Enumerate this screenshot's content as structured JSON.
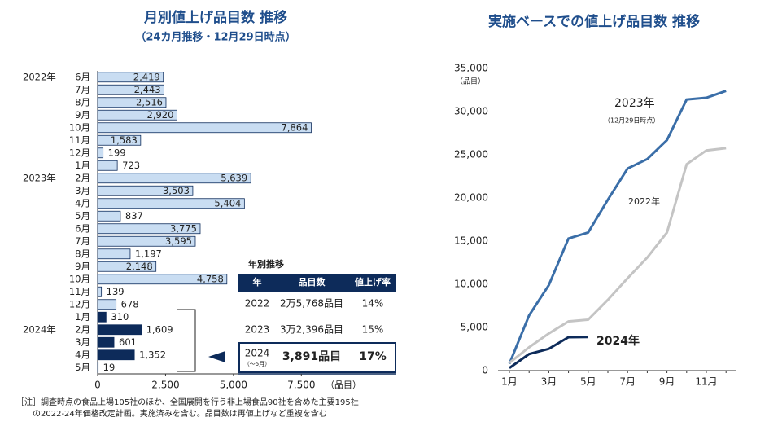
{
  "chart_data": [
    {
      "type": "hbar",
      "title": "月別値上げ品目数 推移",
      "subtitle": "（24カ月推移・12月29日時点）",
      "row_labels": [
        "2022年",
        null,
        null,
        null,
        null,
        null,
        null,
        null,
        "2023年",
        null,
        null,
        null,
        null,
        null,
        null,
        null,
        null,
        null,
        null,
        null,
        "2024年",
        null,
        null,
        null
      ],
      "categories": [
        "6月",
        "7月",
        "8月",
        "9月",
        "10月",
        "11月",
        "12月",
        "1月",
        "2月",
        "3月",
        "4月",
        "5月",
        "6月",
        "7月",
        "8月",
        "9月",
        "10月",
        "11月",
        "12月",
        "1月",
        "2月",
        "3月",
        "4月",
        "5月"
      ],
      "values": [
        2419,
        2443,
        2516,
        2920,
        7864,
        1583,
        199,
        723,
        5639,
        3503,
        5404,
        837,
        3775,
        3595,
        1197,
        2148,
        4758,
        139,
        678,
        310,
        1609,
        601,
        1352,
        19
      ],
      "value_labels": [
        "2,419",
        "2,443",
        "2,516",
        "2,920",
        "7,864",
        "1,583",
        "199",
        "723",
        "5,639",
        "3,503",
        "5,404",
        "837",
        "3,775",
        "3,595",
        "1,197",
        "2,148",
        "4,758",
        "139",
        "678",
        "310",
        "1,609",
        "601",
        "1,352",
        "19"
      ],
      "colors": [
        "#c9ddf2",
        "#c9ddf2",
        "#c9ddf2",
        "#c9ddf2",
        "#c9ddf2",
        "#c9ddf2",
        "#c9ddf2",
        "#c9ddf2",
        "#c9ddf2",
        "#c9ddf2",
        "#c9ddf2",
        "#c9ddf2",
        "#c9ddf2",
        "#c9ddf2",
        "#c9ddf2",
        "#c9ddf2",
        "#c9ddf2",
        "#c9ddf2",
        "#c9ddf2",
        "#0d2b5a",
        "#0d2b5a",
        "#0d2b5a",
        "#0d2b5a",
        "#0d2b5a"
      ],
      "xlim": [
        0,
        8000
      ],
      "xticks": [
        0,
        {
          "value": 2500,
          "label": "2,500"
        },
        {
          "value": 5000,
          "label": "5,000"
        },
        {
          "value": 7500,
          "label": "7,500"
        }
      ],
      "x_label": "（品目）"
    },
    {
      "type": "line",
      "title": "実施ベースでの値上げ品目数 推移",
      "categories": [
        "1月",
        null,
        "3月",
        null,
        "5月",
        null,
        "7月",
        null,
        "9月",
        null,
        "11月",
        null
      ],
      "series": [
        {
          "name": "2023年",
          "note": "（12月29日時点）",
          "color": "#3a6ea8",
          "values": [
            800,
            6400,
            9900,
            15300,
            16000,
            19800,
            23400,
            24500,
            26700,
            31400,
            31600,
            32396
          ]
        },
        {
          "name": "2022年",
          "color": "#c4c4c4",
          "values": [
            900,
            2700,
            4300,
            5700,
            5900,
            8200,
            10700,
            13100,
            16000,
            23900,
            25500,
            25768
          ]
        },
        {
          "name": "2024年",
          "color": "#0d2b5a",
          "values": [
            310,
            1919,
            2520,
            3872,
            3891,
            null,
            null,
            null,
            null,
            null,
            null,
            null
          ]
        }
      ],
      "ylim": [
        0,
        35000
      ],
      "yticks": [
        0,
        {
          "value": 5000,
          "label": "5,000"
        },
        {
          "value": 10000,
          "label": "10,000"
        },
        {
          "value": 15000,
          "label": "15,000"
        },
        {
          "value": 20000,
          "label": "20,000"
        },
        {
          "value": 25000,
          "label": "25,000"
        },
        {
          "value": 30000,
          "label": "30,000"
        },
        {
          "value": 35000,
          "label": "35,000"
        }
      ],
      "y_label": "（品目）"
    }
  ],
  "table": {
    "title": "年別推移",
    "header": [
      "年",
      "品目数",
      "値上げ率"
    ],
    "rows": [
      {
        "year": "2022",
        "count": "2万5,768品目",
        "rate": "14%"
      },
      {
        "year": "2023",
        "count": "3万2,396品目",
        "rate": "15%"
      },
      {
        "year": "2024",
        "note": "（～5月）",
        "count": "3,891品目",
        "rate": "17%"
      }
    ]
  },
  "note": [
    "［注］調査時点の食品上場105社のほか、全国展開を行う非上場食品90社を含めた主要195社",
    "の2022-24年価格改定計画。実施済みを含む。品目数は再値上げなど重複を含む"
  ]
}
